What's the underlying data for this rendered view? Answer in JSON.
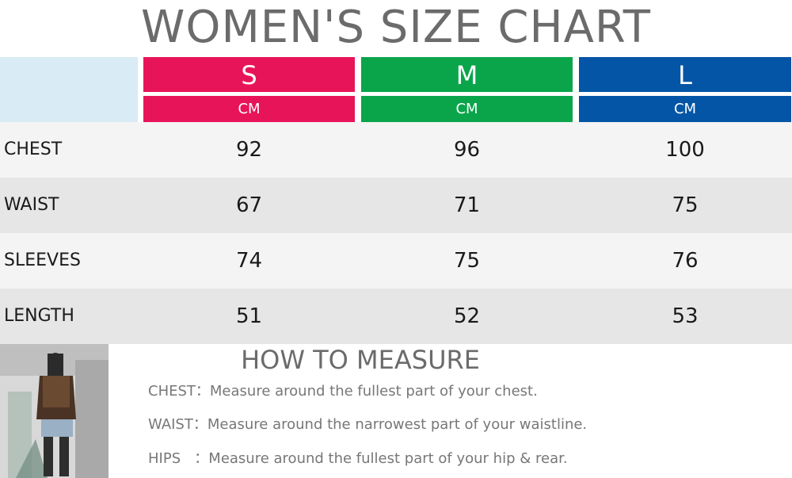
{
  "title": "WOMEN'S SIZE CHART",
  "sizes": [
    {
      "label": "S",
      "unit": "CM",
      "color": "#e8145a"
    },
    {
      "label": "M",
      "unit": "CM",
      "color": "#0aa54a"
    },
    {
      "label": "L",
      "unit": "CM",
      "color": "#0455a6"
    }
  ],
  "header_blank_color": "#d9ebf5",
  "rows": [
    {
      "label": "CHEST",
      "values": [
        "92",
        "96",
        "100"
      ]
    },
    {
      "label": "WAIST",
      "values": [
        "67",
        "71",
        "75"
      ]
    },
    {
      "label": "SLEEVES",
      "values": [
        "74",
        "75",
        "76"
      ]
    },
    {
      "label": "LENGTH",
      "values": [
        "51",
        "52",
        "53"
      ]
    }
  ],
  "how_to_measure": {
    "title": "HOW TO MEASURE",
    "items": [
      {
        "key": "CHEST",
        "sep": "：",
        "text": "Measure around the fullest part of your chest."
      },
      {
        "key": "WAIST",
        "sep": "：",
        "text": "Measure around the narrowest part of your waistline."
      },
      {
        "key": "HIPS",
        "sep": "   ：",
        "text": "Measure around the fullest part of your hip & rear."
      }
    ]
  },
  "photo_icon": "model-photo"
}
